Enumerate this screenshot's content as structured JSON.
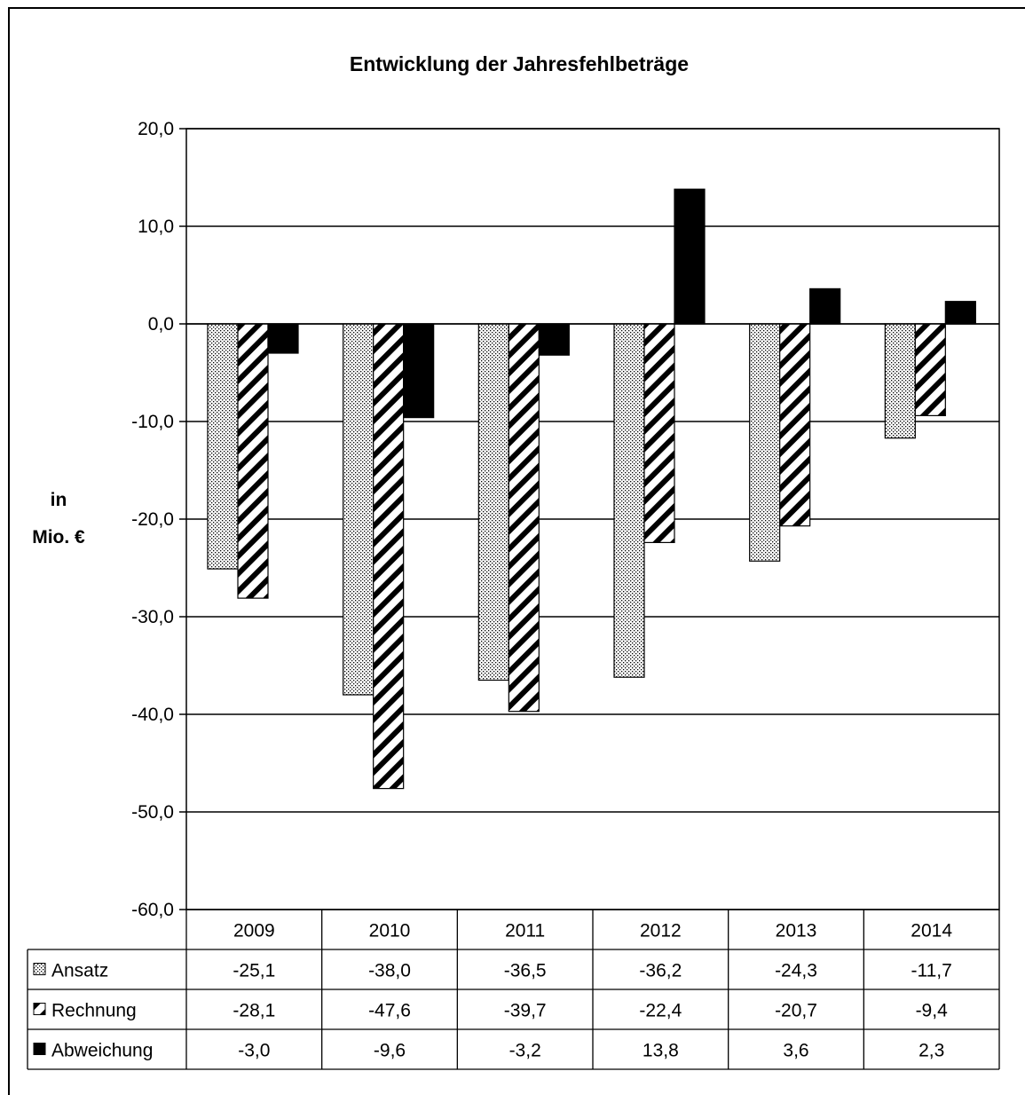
{
  "chart_data": {
    "type": "bar",
    "title": "Entwicklung der Jahresfehlbeträge",
    "ylabel": [
      "in",
      "Mio. €"
    ],
    "ylim": [
      -60,
      20
    ],
    "yticks": [
      20,
      10,
      0,
      -10,
      -20,
      -30,
      -40,
      -50,
      -60
    ],
    "ytick_labels": [
      "20,0",
      "10,0",
      "0,0",
      "-10,0",
      "-20,0",
      "-30,0",
      "-40,0",
      "-50,0",
      "-60,0"
    ],
    "grid": true,
    "legend": "data-table",
    "categories": [
      "2009",
      "2010",
      "2011",
      "2012",
      "2013",
      "2014"
    ],
    "series": [
      {
        "name": "Ansatz",
        "values": [
          -25.1,
          -38.0,
          -36.5,
          -36.2,
          -24.3,
          -11.7
        ],
        "labels": [
          "-25,1",
          "-38,0",
          "-36,5",
          "-36,2",
          "-24,3",
          "-11,7"
        ],
        "pattern": "dots",
        "color": "#000000"
      },
      {
        "name": "Rechnung",
        "values": [
          -28.1,
          -47.6,
          -39.7,
          -22.4,
          -20.7,
          -9.4
        ],
        "labels": [
          "-28,1",
          "-47,6",
          "-39,7",
          "-22,4",
          "-20,7",
          "-9,4"
        ],
        "pattern": "diagonal-stripes",
        "color": "#000000"
      },
      {
        "name": "Abweichung",
        "values": [
          -3.0,
          -9.6,
          -3.2,
          13.8,
          3.6,
          2.3
        ],
        "labels": [
          "-3,0",
          "-9,6",
          "-3,2",
          "13,8",
          "3,6",
          "2,3"
        ],
        "pattern": "solid",
        "color": "#000000"
      }
    ]
  }
}
